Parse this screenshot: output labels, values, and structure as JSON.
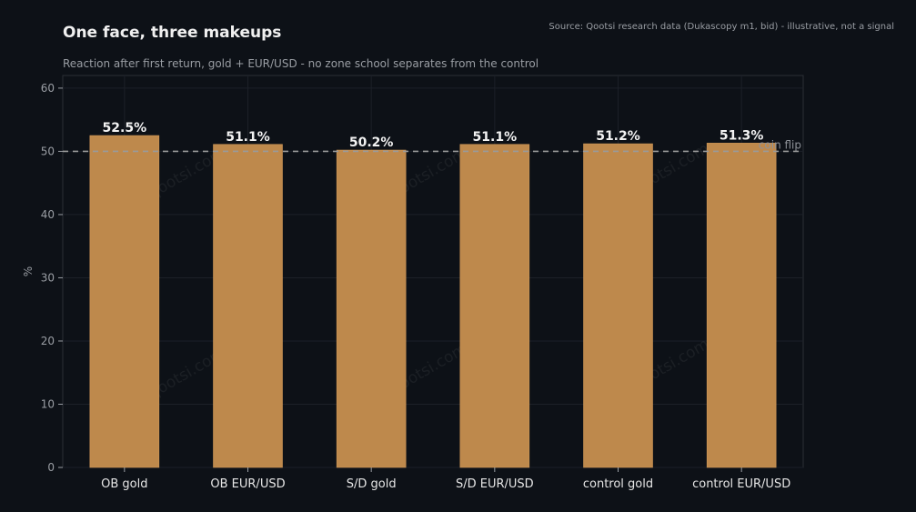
{
  "header": {
    "title": "One face, three makeups",
    "subtitle": "Reaction after first return, gold + EUR/USD - no zone school separates from the control",
    "source": "Source: Qootsi research data (Dukascopy m1, bid) - illustrative, not a signal"
  },
  "watermark": "qootsi.com",
  "colors": {
    "background": "#0d1117",
    "bar": "#be894c",
    "bar_edge": "#d39a58",
    "grid": "#1c2028",
    "reference_line": "#9a9a9a"
  },
  "chart_data": {
    "type": "bar",
    "title": "One face, three makeups",
    "subtitle": "Reaction after first return, gold + EUR/USD - no zone school separates from the control",
    "categories": [
      "OB gold",
      "OB EUR/USD",
      "S/D gold",
      "S/D EUR/USD",
      "control gold",
      "control EUR/USD"
    ],
    "values": [
      52.5,
      51.1,
      50.2,
      51.1,
      51.2,
      51.3
    ],
    "value_labels": [
      "52.5%",
      "51.1%",
      "50.2%",
      "51.1%",
      "51.2%",
      "51.3%"
    ],
    "xlabel": "",
    "ylabel": "%",
    "ylim": [
      0,
      62
    ],
    "yticks": [
      0,
      10,
      20,
      30,
      40,
      50,
      60
    ],
    "grid": true,
    "reference_line": {
      "value": 50,
      "label": "coin flip",
      "style": "dashed"
    }
  }
}
